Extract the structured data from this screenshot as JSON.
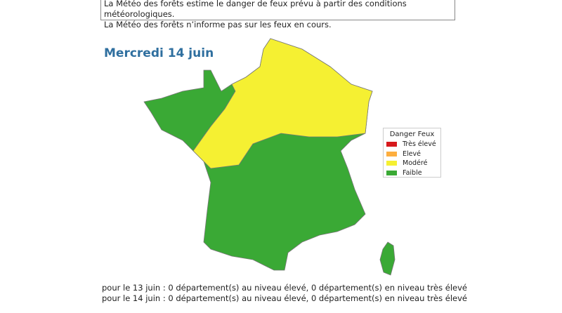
{
  "notice": [
    "La Météo des forêts estime le danger de feux prévu à partir des conditions météorologiques.",
    "La Météo des forêts n’informe pas sur les feux en cours."
  ],
  "title": "Mercredi 14 juin",
  "legend": {
    "title": "Danger Feux",
    "items": [
      {
        "label": "Très élevé",
        "color": "#d7191c"
      },
      {
        "label": "Elevé",
        "color": "#fdae3f"
      },
      {
        "label": "Modéré",
        "color": "#f5f032"
      },
      {
        "label": "Faible",
        "color": "#3aa935"
      }
    ]
  },
  "footer": [
    "pour le 13 juin : 0 département(s) au niveau élevé, 0 département(s) en niveau très élevé",
    "pour le 14 juin : 0 département(s) au niveau élevé, 0 département(s) en niveau très élevé"
  ]
}
